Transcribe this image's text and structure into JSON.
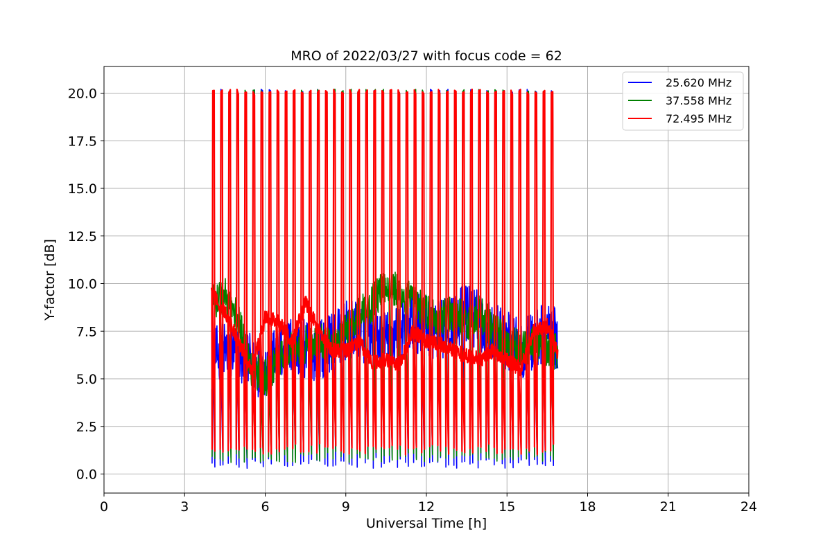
{
  "chart_data": {
    "type": "line",
    "title": "MRO of 2022/03/27 with focus code = 62",
    "xlabel": "Universal Time [h]",
    "ylabel": "Y-factor [dB]",
    "xlim": [
      0,
      24
    ],
    "ylim": [
      -1.0,
      21.4
    ],
    "x_ticks": [
      0,
      3,
      6,
      9,
      12,
      15,
      18,
      21,
      24
    ],
    "x_tick_labels": [
      "0",
      "3",
      "6",
      "9",
      "12",
      "15",
      "18",
      "21",
      "24"
    ],
    "y_ticks": [
      0,
      2.5,
      5,
      7.5,
      10,
      12.5,
      15,
      17.5,
      20
    ],
    "y_tick_labels": [
      "0.0",
      "2.5",
      "5.0",
      "7.5",
      "10.0",
      "12.5",
      "15.0",
      "17.5",
      "20.0"
    ],
    "grid": true,
    "legend_position": "top-right",
    "data_range_x": [
      4.0,
      16.9
    ],
    "calibration_spike_interval_h": 0.3,
    "calibration_spike_peak_db": 20.2,
    "series": [
      {
        "name": "25.620 MHz",
        "color": "#0000ff",
        "x": [
          4.0,
          4.5,
          5.0,
          5.5,
          6.0,
          6.5,
          7.0,
          7.5,
          8.0,
          8.5,
          9.0,
          9.5,
          10.0,
          10.5,
          11.0,
          11.5,
          12.0,
          12.5,
          13.0,
          13.5,
          14.0,
          14.5,
          15.0,
          15.5,
          16.0,
          16.5,
          16.9
        ],
        "y": [
          6.0,
          6.5,
          6.2,
          5.8,
          5.5,
          6.2,
          6.8,
          6.5,
          6.5,
          7.0,
          7.5,
          7.5,
          7.2,
          7.0,
          7.5,
          8.0,
          7.8,
          7.5,
          8.0,
          8.5,
          8.0,
          7.5,
          7.0,
          6.5,
          7.0,
          7.5,
          7.0
        ],
        "y_band_half_width": 1.6
      },
      {
        "name": "37.558 MHz",
        "color": "#008000",
        "x": [
          4.0,
          4.5,
          5.0,
          5.5,
          6.0,
          6.5,
          7.0,
          7.5,
          8.0,
          8.5,
          9.0,
          9.5,
          10.0,
          10.5,
          11.0,
          11.5,
          12.0,
          12.5,
          13.0,
          13.5,
          14.0,
          14.5,
          15.0,
          15.5,
          16.0,
          16.5,
          16.9
        ],
        "y": [
          9.0,
          9.5,
          8.0,
          5.5,
          5.0,
          6.0,
          6.5,
          6.8,
          7.0,
          6.5,
          7.5,
          8.5,
          9.0,
          10.0,
          9.5,
          9.0,
          8.5,
          8.0,
          8.5,
          8.0,
          8.5,
          7.5,
          7.0,
          6.5,
          7.0,
          6.5,
          6.5
        ],
        "y_band_half_width": 1.0
      },
      {
        "name": "72.495 MHz",
        "color": "#ff0000",
        "x": [
          4.0,
          4.5,
          5.0,
          5.5,
          6.0,
          6.5,
          7.0,
          7.5,
          8.0,
          8.5,
          9.0,
          9.5,
          10.0,
          10.5,
          11.0,
          11.5,
          12.0,
          12.5,
          13.0,
          13.5,
          14.0,
          14.5,
          15.0,
          15.5,
          16.0,
          16.5,
          16.9
        ],
        "y": [
          9.5,
          8.5,
          7.0,
          5.5,
          8.2,
          8.0,
          7.0,
          9.0,
          7.5,
          6.5,
          6.5,
          7.0,
          5.8,
          6.0,
          5.8,
          7.5,
          7.0,
          6.8,
          6.5,
          6.2,
          6.0,
          6.5,
          6.0,
          5.5,
          7.5,
          7.8,
          6.3
        ],
        "y_band_half_width": 0.4
      }
    ]
  }
}
